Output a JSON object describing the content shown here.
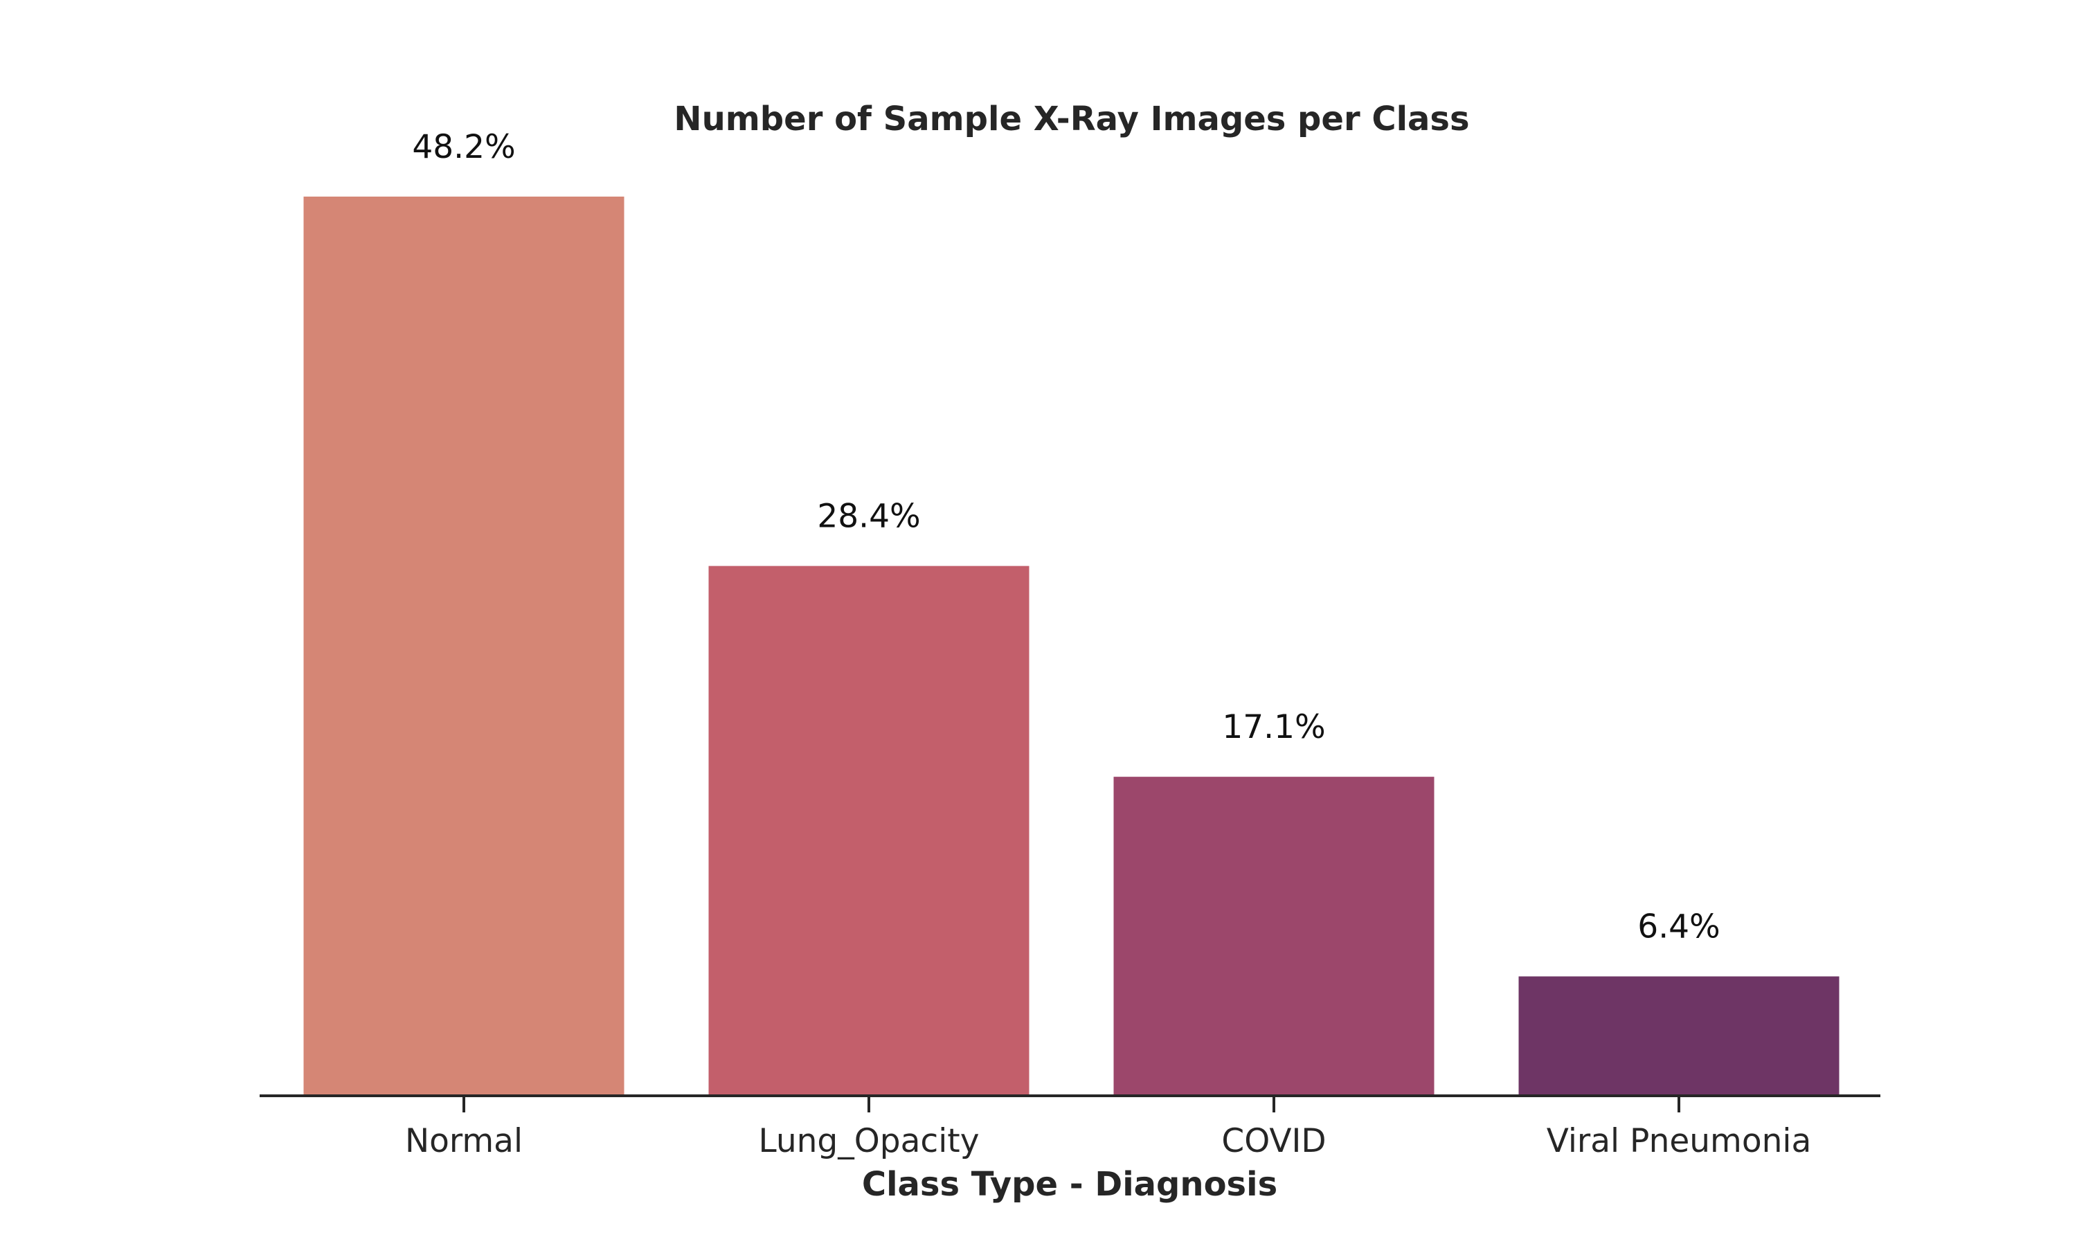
{
  "chart_data": {
    "type": "bar",
    "title": "Number of Sample X-Ray Images per Class",
    "xlabel": "Class Type - Diagnosis",
    "ylabel": "",
    "categories": [
      "Normal",
      "Lung_Opacity",
      "COVID",
      "Viral Pneumonia"
    ],
    "values": [
      48.2,
      28.4,
      17.1,
      6.4
    ],
    "data_labels": [
      "48.2%",
      "28.4%",
      "17.1%",
      "6.4%"
    ],
    "colors": [
      "#d58675",
      "#c35f6b",
      "#9c476b",
      "#6e3565"
    ],
    "ylim": [
      0,
      50
    ],
    "y_axis_visible": false,
    "grid": false,
    "legend": "none"
  }
}
